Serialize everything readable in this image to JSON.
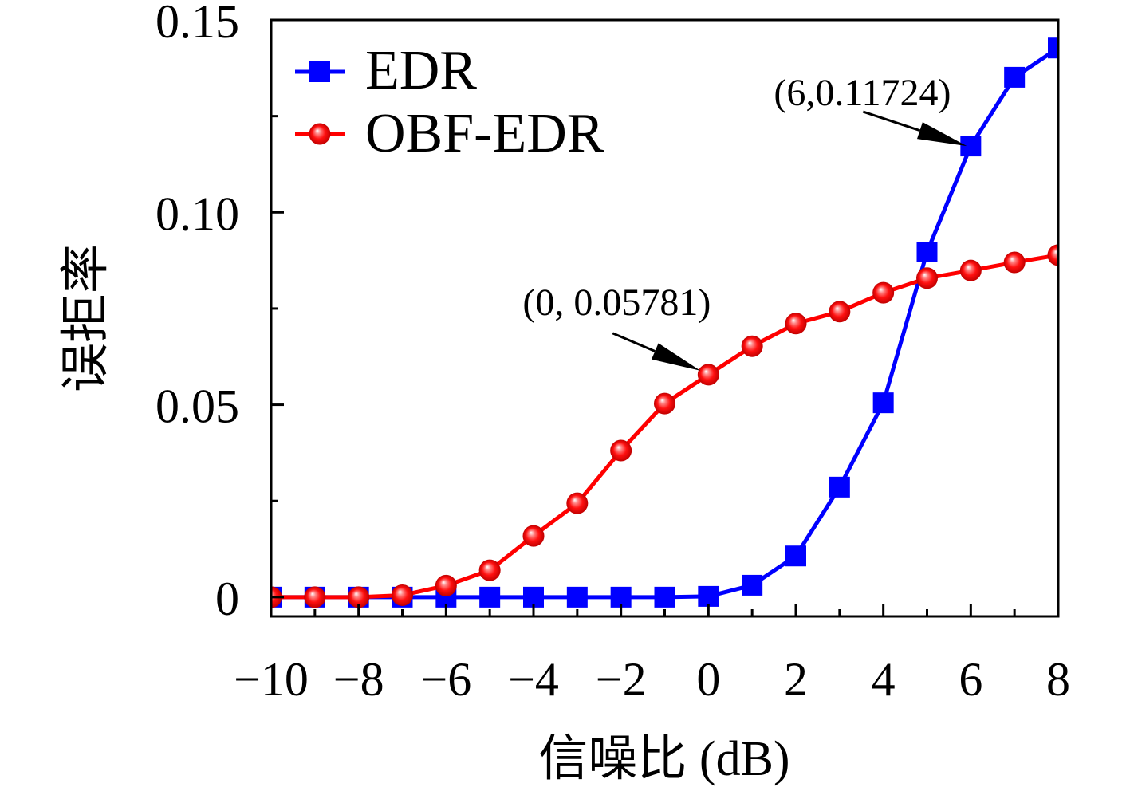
{
  "chart_data": {
    "type": "line",
    "title": "",
    "xlabel": "信噪比 (dB)",
    "ylabel": "误拒率",
    "xlim": [
      -10,
      8
    ],
    "ylim": [
      -0.005,
      0.15
    ],
    "xticks": [
      -10,
      -8,
      -6,
      -4,
      -2,
      0,
      2,
      4,
      6,
      8
    ],
    "xtick_labels": [
      "−10",
      "−8",
      "−6",
      "−4",
      "−2",
      "0",
      "2",
      "4",
      "6",
      "8"
    ],
    "x_minor_step": 1,
    "yticks": [
      0,
      0.05,
      0.1,
      0.15
    ],
    "ytick_labels": [
      "0",
      "0.05",
      "0.10",
      "0.15"
    ],
    "y_minor_step": 0.025,
    "grid": false,
    "legend": {
      "placement": "top-left"
    },
    "x": [
      -10,
      -9,
      -8,
      -7,
      -6,
      -5,
      -4,
      -3,
      -2,
      -1,
      0,
      1,
      2,
      3,
      4,
      5,
      6,
      7,
      8
    ],
    "series": [
      {
        "name": "EDR",
        "color": "#0000ff",
        "marker": "square",
        "values": [
          0,
          0,
          0,
          0,
          0,
          0,
          0,
          0,
          0,
          0,
          0.0002,
          0.0031,
          0.0107,
          0.0286,
          0.0505,
          0.0897,
          0.11724,
          0.1351,
          0.1427
        ]
      },
      {
        "name": "OBF-EDR",
        "color": "#ff0000",
        "marker": "circle",
        "values": [
          0,
          0,
          0,
          0.0005,
          0.003,
          0.007,
          0.0159,
          0.0244,
          0.0381,
          0.0503,
          0.05781,
          0.0652,
          0.0711,
          0.0742,
          0.0791,
          0.0829,
          0.0849,
          0.087,
          0.0889
        ]
      }
    ],
    "annotations": [
      {
        "text": "(6,0.11724)",
        "x": 6,
        "y": 0.11724
      },
      {
        "text": "(0, 0.05781)",
        "x": 0,
        "y": 0.05781
      }
    ]
  }
}
